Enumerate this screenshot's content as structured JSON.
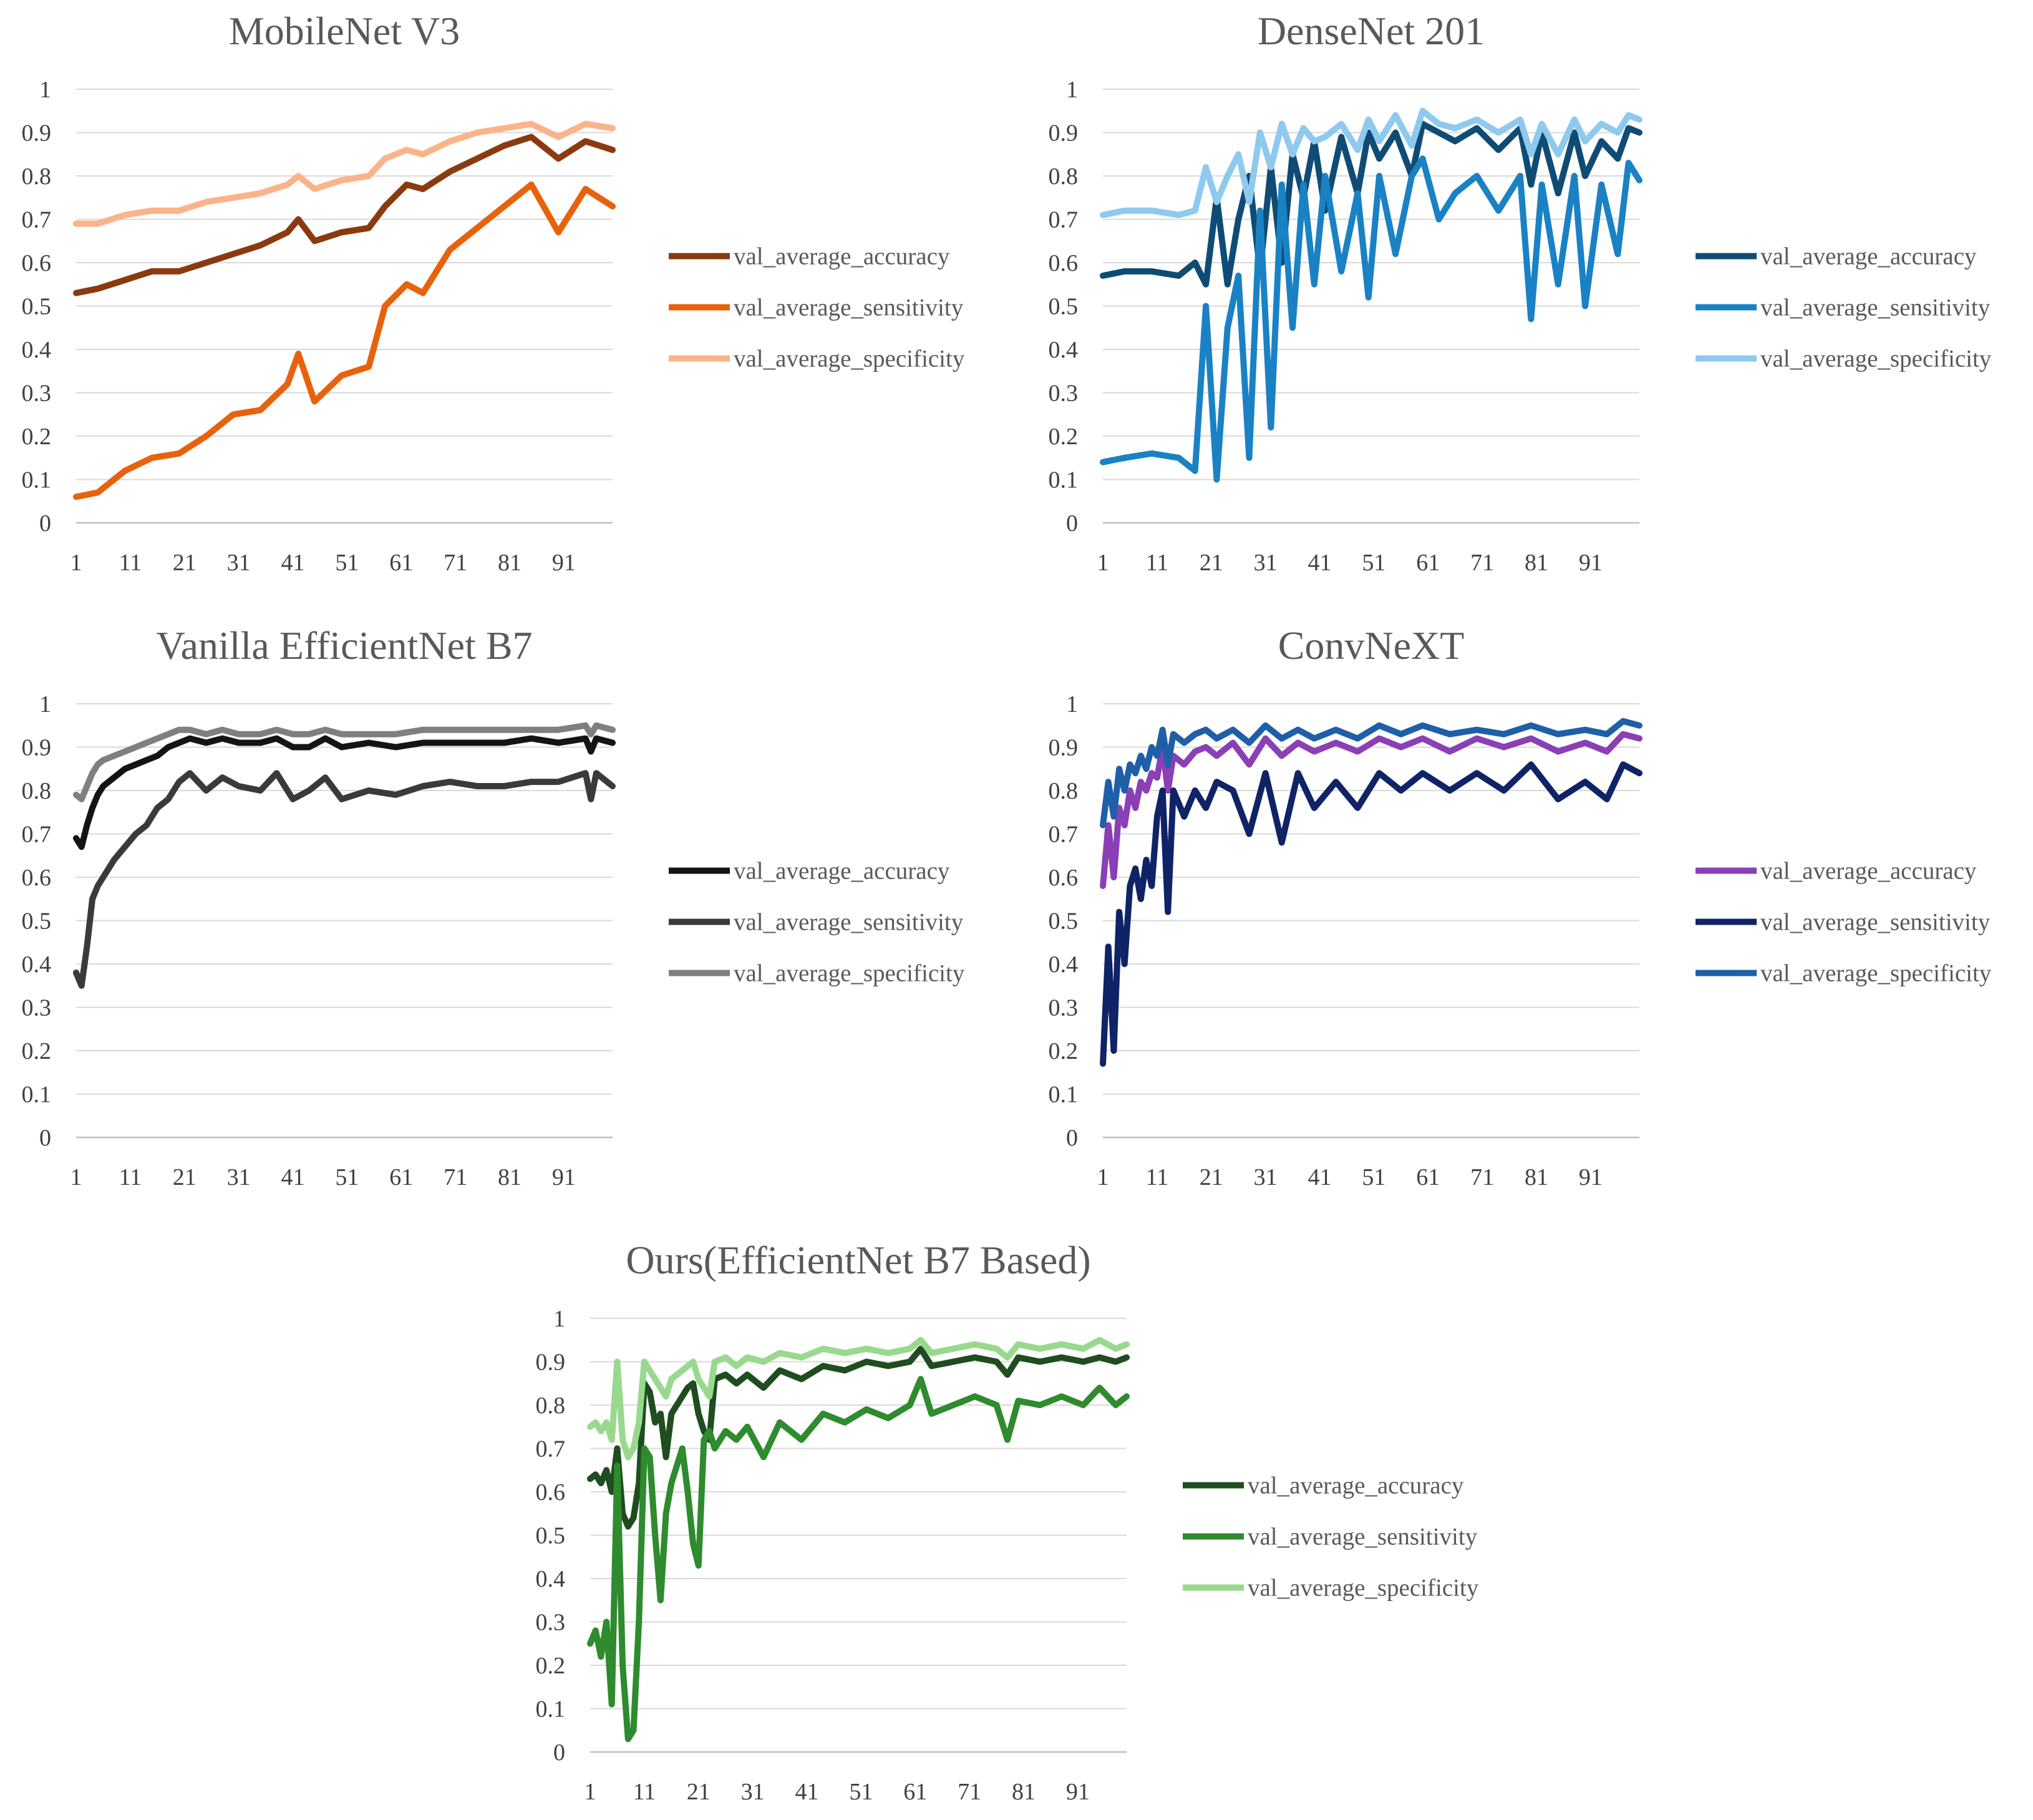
{
  "colors": {
    "grid": "#d9d9d9",
    "axis": "#bfbfbf"
  },
  "chart_data": [
    {
      "type": "line",
      "title": "MobileNet V3",
      "ylim": [
        0,
        1
      ],
      "y_ticks": [
        "0",
        "0.1",
        "0.2",
        "0.3",
        "0.4",
        "0.5",
        "0.6",
        "0.7",
        "0.8",
        "0.9",
        "1"
      ],
      "x_ticks": [
        "1",
        "11",
        "21",
        "31",
        "41",
        "51",
        "61",
        "71",
        "81",
        "91"
      ],
      "grid": true,
      "legend_position": "right",
      "x": [
        1,
        5,
        10,
        15,
        20,
        25,
        30,
        35,
        40,
        42,
        45,
        50,
        55,
        58,
        62,
        65,
        70,
        75,
        80,
        85,
        90,
        95,
        100
      ],
      "series": [
        {
          "name": "val_average_accuracy",
          "color": "#8b3a0f",
          "values": [
            0.53,
            0.54,
            0.56,
            0.58,
            0.58,
            0.6,
            0.62,
            0.64,
            0.67,
            0.7,
            0.65,
            0.67,
            0.68,
            0.73,
            0.78,
            0.77,
            0.81,
            0.84,
            0.87,
            0.89,
            0.84,
            0.88,
            0.86
          ]
        },
        {
          "name": "val_average_sensitivity",
          "color": "#e8620c",
          "values": [
            0.06,
            0.07,
            0.12,
            0.15,
            0.16,
            0.2,
            0.25,
            0.26,
            0.32,
            0.39,
            0.28,
            0.34,
            0.36,
            0.5,
            0.55,
            0.53,
            0.63,
            0.68,
            0.73,
            0.78,
            0.67,
            0.77,
            0.73
          ]
        },
        {
          "name": "val_average_specificity",
          "color": "#fbb48a",
          "values": [
            0.69,
            0.69,
            0.71,
            0.72,
            0.72,
            0.74,
            0.75,
            0.76,
            0.78,
            0.8,
            0.77,
            0.79,
            0.8,
            0.84,
            0.86,
            0.85,
            0.88,
            0.9,
            0.91,
            0.92,
            0.89,
            0.92,
            0.91
          ]
        }
      ]
    },
    {
      "type": "line",
      "title": "DenseNet 201",
      "ylim": [
        0,
        1
      ],
      "y_ticks": [
        "0",
        "0.1",
        "0.2",
        "0.3",
        "0.4",
        "0.5",
        "0.6",
        "0.7",
        "0.8",
        "0.9",
        "1"
      ],
      "x_ticks": [
        "1",
        "11",
        "21",
        "31",
        "41",
        "51",
        "61",
        "71",
        "81",
        "91"
      ],
      "grid": true,
      "legend_position": "right",
      "x": [
        1,
        5,
        10,
        15,
        18,
        20,
        22,
        24,
        26,
        28,
        30,
        32,
        34,
        36,
        38,
        40,
        42,
        45,
        48,
        50,
        52,
        55,
        58,
        60,
        63,
        66,
        70,
        74,
        78,
        80,
        82,
        85,
        88,
        90,
        93,
        96,
        98,
        100
      ],
      "series": [
        {
          "name": "val_average_accuracy",
          "color": "#0f4c75",
          "values": [
            0.57,
            0.58,
            0.58,
            0.57,
            0.6,
            0.55,
            0.75,
            0.55,
            0.7,
            0.8,
            0.58,
            0.82,
            0.6,
            0.85,
            0.75,
            0.88,
            0.72,
            0.89,
            0.76,
            0.9,
            0.84,
            0.9,
            0.8,
            0.92,
            0.9,
            0.88,
            0.91,
            0.86,
            0.91,
            0.78,
            0.9,
            0.76,
            0.9,
            0.8,
            0.88,
            0.84,
            0.91,
            0.9
          ]
        },
        {
          "name": "val_average_sensitivity",
          "color": "#1a82c4",
          "values": [
            0.14,
            0.15,
            0.16,
            0.15,
            0.12,
            0.5,
            0.1,
            0.45,
            0.57,
            0.15,
            0.72,
            0.22,
            0.78,
            0.45,
            0.78,
            0.55,
            0.8,
            0.58,
            0.76,
            0.52,
            0.8,
            0.62,
            0.8,
            0.84,
            0.7,
            0.76,
            0.8,
            0.72,
            0.8,
            0.47,
            0.78,
            0.55,
            0.8,
            0.5,
            0.78,
            0.62,
            0.83,
            0.79
          ]
        },
        {
          "name": "val_average_specificity",
          "color": "#8ec9ee",
          "values": [
            0.71,
            0.72,
            0.72,
            0.71,
            0.72,
            0.82,
            0.74,
            0.8,
            0.85,
            0.74,
            0.9,
            0.82,
            0.92,
            0.85,
            0.91,
            0.88,
            0.89,
            0.92,
            0.86,
            0.93,
            0.88,
            0.94,
            0.87,
            0.95,
            0.92,
            0.91,
            0.93,
            0.9,
            0.93,
            0.85,
            0.92,
            0.85,
            0.93,
            0.88,
            0.92,
            0.9,
            0.94,
            0.93
          ]
        }
      ]
    },
    {
      "type": "line",
      "title": "Vanilla EfficientNet B7",
      "ylim": [
        0,
        1
      ],
      "y_ticks": [
        "0",
        "0.1",
        "0.2",
        "0.3",
        "0.4",
        "0.5",
        "0.6",
        "0.7",
        "0.8",
        "0.9",
        "1"
      ],
      "x_ticks": [
        "1",
        "11",
        "21",
        "31",
        "41",
        "51",
        "61",
        "71",
        "81",
        "91"
      ],
      "grid": true,
      "legend_position": "right",
      "x": [
        1,
        2,
        3,
        4,
        5,
        6,
        8,
        10,
        12,
        14,
        16,
        18,
        20,
        22,
        25,
        28,
        31,
        35,
        38,
        41,
        44,
        47,
        50,
        55,
        60,
        65,
        70,
        75,
        80,
        85,
        90,
        95,
        96,
        97,
        100
      ],
      "series": [
        {
          "name": "val_average_accuracy",
          "color": "#141414",
          "values": [
            0.69,
            0.67,
            0.72,
            0.76,
            0.79,
            0.81,
            0.83,
            0.85,
            0.86,
            0.87,
            0.88,
            0.9,
            0.91,
            0.92,
            0.91,
            0.92,
            0.91,
            0.91,
            0.92,
            0.9,
            0.9,
            0.92,
            0.9,
            0.91,
            0.9,
            0.91,
            0.91,
            0.91,
            0.91,
            0.92,
            0.91,
            0.92,
            0.89,
            0.92,
            0.91
          ]
        },
        {
          "name": "val_average_sensitivity",
          "color": "#3a3a3a",
          "values": [
            0.38,
            0.35,
            0.44,
            0.55,
            0.58,
            0.6,
            0.64,
            0.67,
            0.7,
            0.72,
            0.76,
            0.78,
            0.82,
            0.84,
            0.8,
            0.83,
            0.81,
            0.8,
            0.84,
            0.78,
            0.8,
            0.83,
            0.78,
            0.8,
            0.79,
            0.81,
            0.82,
            0.81,
            0.81,
            0.82,
            0.82,
            0.84,
            0.78,
            0.84,
            0.81
          ]
        },
        {
          "name": "val_average_specificity",
          "color": "#7f7f7f",
          "values": [
            0.79,
            0.78,
            0.81,
            0.84,
            0.86,
            0.87,
            0.88,
            0.89,
            0.9,
            0.91,
            0.92,
            0.93,
            0.94,
            0.94,
            0.93,
            0.94,
            0.93,
            0.93,
            0.94,
            0.93,
            0.93,
            0.94,
            0.93,
            0.93,
            0.93,
            0.94,
            0.94,
            0.94,
            0.94,
            0.94,
            0.94,
            0.95,
            0.93,
            0.95,
            0.94
          ]
        }
      ]
    },
    {
      "type": "line",
      "title": "ConvNeXT",
      "ylim": [
        0,
        1
      ],
      "y_ticks": [
        "0",
        "0.1",
        "0.2",
        "0.3",
        "0.4",
        "0.5",
        "0.6",
        "0.7",
        "0.8",
        "0.9",
        "1"
      ],
      "x_ticks": [
        "1",
        "11",
        "21",
        "31",
        "41",
        "51",
        "61",
        "71",
        "81",
        "91"
      ],
      "grid": true,
      "legend_position": "right",
      "x": [
        1,
        2,
        3,
        4,
        5,
        6,
        7,
        8,
        9,
        10,
        11,
        12,
        13,
        14,
        16,
        18,
        20,
        22,
        25,
        28,
        31,
        34,
        37,
        40,
        44,
        48,
        52,
        56,
        60,
        65,
        70,
        75,
        80,
        85,
        90,
        94,
        97,
        100
      ],
      "series": [
        {
          "name": "val_average_accuracy",
          "color": "#8b3fb5",
          "values": [
            0.58,
            0.72,
            0.6,
            0.76,
            0.72,
            0.8,
            0.76,
            0.82,
            0.8,
            0.84,
            0.83,
            0.9,
            0.8,
            0.88,
            0.86,
            0.89,
            0.9,
            0.88,
            0.91,
            0.86,
            0.92,
            0.88,
            0.91,
            0.89,
            0.91,
            0.89,
            0.92,
            0.9,
            0.92,
            0.89,
            0.92,
            0.9,
            0.92,
            0.89,
            0.91,
            0.89,
            0.93,
            0.92
          ]
        },
        {
          "name": "val_average_sensitivity",
          "color": "#0f2366",
          "values": [
            0.17,
            0.44,
            0.2,
            0.52,
            0.4,
            0.58,
            0.62,
            0.55,
            0.64,
            0.58,
            0.74,
            0.8,
            0.52,
            0.8,
            0.74,
            0.8,
            0.76,
            0.82,
            0.8,
            0.7,
            0.84,
            0.68,
            0.84,
            0.76,
            0.82,
            0.76,
            0.84,
            0.8,
            0.84,
            0.8,
            0.84,
            0.8,
            0.86,
            0.78,
            0.82,
            0.78,
            0.86,
            0.84
          ]
        },
        {
          "name": "val_average_specificity",
          "color": "#1f5fa8",
          "values": [
            0.72,
            0.82,
            0.74,
            0.85,
            0.8,
            0.86,
            0.84,
            0.88,
            0.85,
            0.9,
            0.88,
            0.94,
            0.86,
            0.93,
            0.91,
            0.93,
            0.94,
            0.92,
            0.94,
            0.91,
            0.95,
            0.92,
            0.94,
            0.92,
            0.94,
            0.92,
            0.95,
            0.93,
            0.95,
            0.93,
            0.94,
            0.93,
            0.95,
            0.93,
            0.94,
            0.93,
            0.96,
            0.95
          ]
        }
      ]
    },
    {
      "type": "line",
      "title": "Ours(EfficientNet B7 Based)",
      "ylim": [
        0,
        1
      ],
      "y_ticks": [
        "0",
        "0.1",
        "0.2",
        "0.3",
        "0.4",
        "0.5",
        "0.6",
        "0.7",
        "0.8",
        "0.9",
        "1"
      ],
      "x_ticks": [
        "1",
        "11",
        "21",
        "31",
        "41",
        "51",
        "61",
        "71",
        "81",
        "91"
      ],
      "grid": true,
      "legend_position": "right",
      "x": [
        1,
        2,
        3,
        4,
        5,
        6,
        7,
        8,
        9,
        10,
        11,
        12,
        13,
        14,
        15,
        16,
        17,
        18,
        19,
        20,
        21,
        22,
        23,
        24,
        26,
        28,
        30,
        33,
        36,
        40,
        44,
        48,
        52,
        56,
        60,
        62,
        64,
        68,
        72,
        76,
        78,
        80,
        84,
        88,
        92,
        95,
        98,
        100
      ],
      "series": [
        {
          "name": "val_average_accuracy",
          "color": "#1f4d1f",
          "values": [
            0.63,
            0.64,
            0.62,
            0.65,
            0.6,
            0.7,
            0.55,
            0.52,
            0.54,
            0.62,
            0.85,
            0.83,
            0.76,
            0.78,
            0.68,
            0.78,
            0.8,
            0.82,
            0.84,
            0.85,
            0.78,
            0.74,
            0.72,
            0.86,
            0.87,
            0.85,
            0.87,
            0.84,
            0.88,
            0.86,
            0.89,
            0.88,
            0.9,
            0.89,
            0.9,
            0.93,
            0.89,
            0.9,
            0.91,
            0.9,
            0.87,
            0.91,
            0.9,
            0.91,
            0.9,
            0.91,
            0.9,
            0.91
          ]
        },
        {
          "name": "val_average_sensitivity",
          "color": "#2e8b2e",
          "values": [
            0.25,
            0.28,
            0.22,
            0.3,
            0.11,
            0.66,
            0.2,
            0.03,
            0.05,
            0.3,
            0.7,
            0.68,
            0.5,
            0.35,
            0.55,
            0.62,
            0.66,
            0.7,
            0.6,
            0.48,
            0.43,
            0.72,
            0.74,
            0.7,
            0.74,
            0.72,
            0.75,
            0.68,
            0.76,
            0.72,
            0.78,
            0.76,
            0.79,
            0.77,
            0.8,
            0.86,
            0.78,
            0.8,
            0.82,
            0.8,
            0.72,
            0.81,
            0.8,
            0.82,
            0.8,
            0.84,
            0.8,
            0.82
          ]
        },
        {
          "name": "val_average_specificity",
          "color": "#98d98e",
          "values": [
            0.75,
            0.76,
            0.74,
            0.76,
            0.72,
            0.9,
            0.72,
            0.68,
            0.7,
            0.76,
            0.9,
            0.88,
            0.86,
            0.84,
            0.82,
            0.86,
            0.87,
            0.88,
            0.89,
            0.9,
            0.86,
            0.84,
            0.82,
            0.9,
            0.91,
            0.89,
            0.91,
            0.9,
            0.92,
            0.91,
            0.93,
            0.92,
            0.93,
            0.92,
            0.93,
            0.95,
            0.92,
            0.93,
            0.94,
            0.93,
            0.91,
            0.94,
            0.93,
            0.94,
            0.93,
            0.95,
            0.93,
            0.94
          ]
        }
      ]
    }
  ]
}
